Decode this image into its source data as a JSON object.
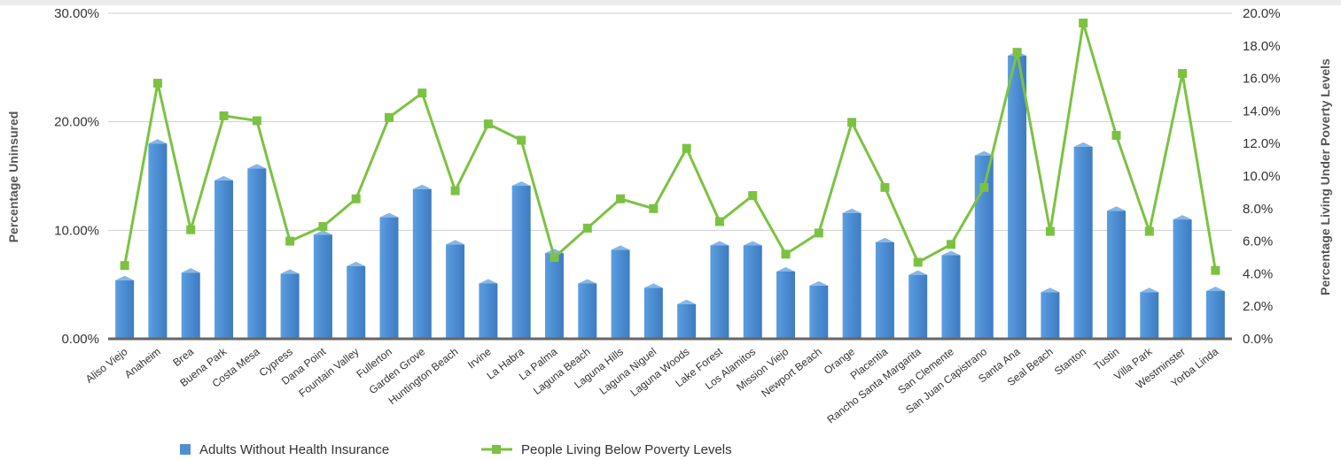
{
  "chart_data": {
    "type": "bar",
    "categories": [
      "Aliso Viejo",
      "Anaheim",
      "Brea",
      "Buena Park",
      "Costa Mesa",
      "Cypress",
      "Dana Point",
      "Fountain Valley",
      "Fullerton",
      "Garden Grove",
      "Huntington Beach",
      "Irvine",
      "La Habra",
      "La Palma",
      "Laguna Beach",
      "Laguna Hills",
      "Laguna Niguel",
      "Laguna Woods",
      "Lake Forest",
      "Los Alamitos",
      "Mission Viejo",
      "Newport Beach",
      "Orange",
      "Placentia",
      "Rancho Santa Margarita",
      "San Clemente",
      "San Juan Capistrano",
      "Santa Ana",
      "Seal Beach",
      "Stanton",
      "Tustin",
      "Villa Park",
      "Westminster",
      "Yorba Linda"
    ],
    "series": [
      {
        "name": "Adults Without Health Insurance",
        "type": "bar",
        "axis": "left",
        "color": "#4f8fd3",
        "values": [
          5.4,
          18.0,
          6.1,
          14.6,
          15.7,
          6.0,
          9.6,
          6.7,
          11.2,
          13.8,
          8.7,
          5.1,
          14.1,
          7.9,
          5.1,
          8.2,
          4.7,
          3.2,
          8.6,
          8.6,
          6.2,
          4.9,
          11.6,
          8.9,
          5.9,
          7.7,
          16.9,
          26.1,
          4.3,
          17.7,
          11.8,
          4.3,
          11.0,
          4.4
        ]
      },
      {
        "name": "People Living Below Poverty Levels",
        "type": "line",
        "axis": "right",
        "color": "#7cc242",
        "values": [
          4.5,
          15.7,
          6.7,
          13.7,
          13.4,
          6.0,
          6.9,
          8.6,
          13.6,
          15.1,
          9.1,
          13.2,
          12.2,
          5.0,
          6.8,
          8.6,
          8.0,
          11.7,
          7.2,
          8.8,
          5.2,
          6.5,
          13.3,
          9.3,
          4.7,
          5.8,
          9.3,
          17.6,
          6.6,
          19.4,
          12.5,
          6.6,
          16.3,
          4.2
        ]
      }
    ],
    "y_left": {
      "label": "Percentage Uninsured",
      "min": 0,
      "max": 30,
      "ticks": [
        "0.00%",
        "10.00%",
        "20.00%",
        "30.00%"
      ]
    },
    "y_right": {
      "label": "Percentage Living Under Poverty Levels",
      "min": 0,
      "max": 20,
      "ticks": [
        "0.0%",
        "2.0%",
        "4.0%",
        "6.0%",
        "8.0%",
        "10.0%",
        "12.0%",
        "14.0%",
        "16.0%",
        "18.0%",
        "20.0%"
      ]
    },
    "grid": true,
    "legend_position": "bottom"
  }
}
